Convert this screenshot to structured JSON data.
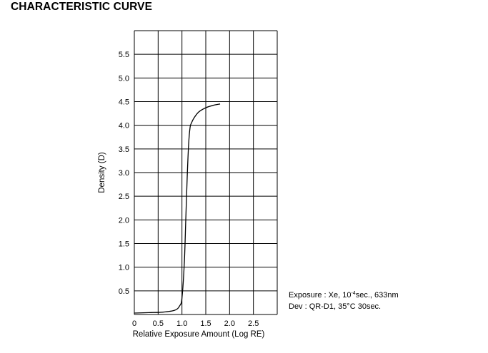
{
  "title": "CHARACTERISTIC CURVE",
  "notes": {
    "exposure": {
      "label": "Exposure",
      "sep": " : ",
      "pre": "Xe, 10",
      "exponent": "-4",
      "post": "sec., 633nm"
    },
    "dev": {
      "label": "Dev",
      "sep": " : ",
      "value": "QR-D1, 35°C 30sec."
    }
  },
  "chart_data": {
    "type": "line",
    "title": "CHARACTERISTIC CURVE",
    "xlabel": "Relative Exposure Amount (Log RE)",
    "ylabel": "Density (D)",
    "xlim": [
      0,
      3.0
    ],
    "ylim": [
      0,
      6.0
    ],
    "x_ticks": [
      0,
      0.5,
      1.0,
      1.5,
      2.0,
      2.5
    ],
    "x_tick_labels": [
      "0",
      "0.5",
      "1.0",
      "1.5",
      "2.0",
      "2.5"
    ],
    "y_ticks": [
      0.5,
      1.0,
      1.5,
      2.0,
      2.5,
      3.0,
      3.5,
      4.0,
      4.5,
      5.0,
      5.5
    ],
    "y_tick_labels": [
      "0.5",
      "1.0",
      "1.5",
      "2.0",
      "2.5",
      "3.0",
      "3.5",
      "4.0",
      "4.5",
      "5.0",
      "5.5"
    ],
    "grid": true,
    "series": [
      {
        "x": [
          0,
          0.3,
          0.6,
          0.85,
          0.95,
          1.0,
          1.05,
          1.08,
          1.11,
          1.14,
          1.17,
          1.2,
          1.25,
          1.35,
          1.5,
          1.65,
          1.8
        ],
        "y": [
          0.03,
          0.04,
          0.05,
          0.09,
          0.18,
          0.35,
          1.1,
          2.0,
          2.9,
          3.6,
          3.95,
          4.05,
          4.15,
          4.28,
          4.37,
          4.42,
          4.45
        ]
      }
    ]
  }
}
